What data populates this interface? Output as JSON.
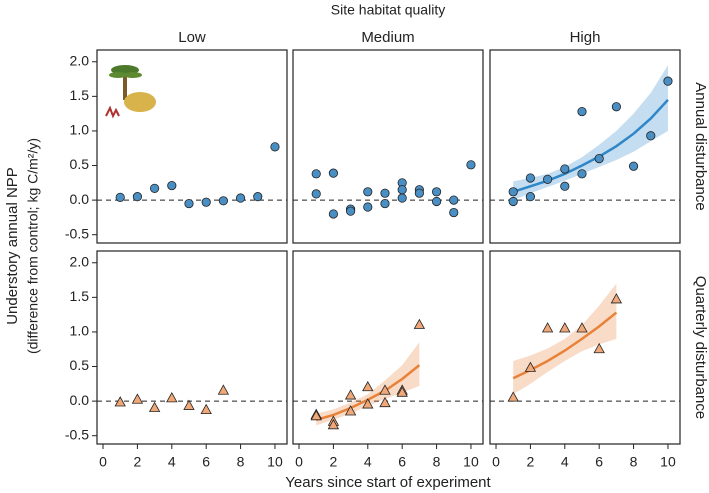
{
  "figure": {
    "title": "Site habitat quality",
    "columns": [
      "Low",
      "Medium",
      "High"
    ],
    "rows": [
      "Annual disturbance",
      "Quarterly disturbance"
    ],
    "ylabel": [
      "Understory annual NPP",
      "(difference from control; kg C/m²/y)"
    ],
    "xlabel": "Years since start of experiment",
    "xlim": [
      -0.35,
      10.7
    ],
    "ylim": [
      -0.62,
      2.17
    ],
    "xticks": [
      0,
      2,
      4,
      6,
      8,
      10
    ],
    "yticks": [
      -0.5,
      {
        "value": 0,
        "label": "0.0"
      },
      0.5,
      {
        "value": 1,
        "label": "1.0"
      },
      1.5,
      {
        "value": 2,
        "label": "2.0"
      }
    ],
    "reference_line": 0
  },
  "chart_data": [
    {
      "type": "scatter",
      "color": "#4a8fc4",
      "marker": "circle",
      "x": [
        1,
        2,
        3,
        4,
        5,
        6,
        7,
        8,
        9,
        10
      ],
      "values": [
        0.04,
        0.05,
        0.17,
        0.21,
        -0.05,
        -0.03,
        -0.01,
        0.03,
        0.05,
        0.77
      ]
    },
    {
      "type": "scatter",
      "color": "#4a8fc4",
      "marker": "circle",
      "x": [
        1,
        1,
        2,
        2,
        3,
        3,
        4,
        4,
        5,
        5,
        6,
        6,
        6,
        7,
        7,
        8,
        8,
        9,
        9,
        10
      ],
      "values": [
        0.38,
        0.09,
        0.39,
        -0.2,
        -0.13,
        -0.16,
        0.12,
        -0.1,
        0.1,
        -0.05,
        0.25,
        0.03,
        0.15,
        0.15,
        0.1,
        0.12,
        -0.02,
        -0.18,
        0.0,
        0.51
      ]
    },
    {
      "type": "scatter",
      "color": "#4a8fc4",
      "marker": "circle",
      "x": [
        1,
        1,
        2,
        2,
        3,
        4,
        4,
        5,
        5,
        6,
        7,
        8,
        9,
        10
      ],
      "values": [
        0.12,
        -0.02,
        0.32,
        0.05,
        0.3,
        0.45,
        0.2,
        1.28,
        0.38,
        0.6,
        1.35,
        0.49,
        0.93,
        1.72
      ],
      "fit": {
        "color": "#2f86c8",
        "x": [
          1,
          2,
          3,
          4,
          5,
          6,
          7,
          8,
          9,
          10
        ],
        "y": [
          0.12,
          0.2,
          0.28,
          0.38,
          0.5,
          0.63,
          0.78,
          0.96,
          1.18,
          1.45
        ],
        "lower": [
          0.0,
          0.1,
          0.19,
          0.28,
          0.38,
          0.48,
          0.58,
          0.7,
          0.85,
          1.0
        ],
        "upper": [
          0.27,
          0.32,
          0.38,
          0.48,
          0.62,
          0.8,
          1.0,
          1.25,
          1.55,
          1.95
        ]
      }
    },
    {
      "type": "scatter",
      "color": "#f0a878",
      "marker": "triangle",
      "x": [
        1,
        2,
        3,
        4,
        5,
        6,
        7
      ],
      "values": [
        -0.02,
        0.02,
        -0.1,
        0.04,
        -0.07,
        -0.13,
        0.15
      ]
    },
    {
      "type": "scatter",
      "color": "#f0a878",
      "marker": "triangle",
      "x": [
        1,
        1,
        2,
        2,
        3,
        3,
        4,
        4,
        5,
        5,
        6,
        6,
        7
      ],
      "values": [
        -0.2,
        -0.22,
        -0.3,
        -0.35,
        0.08,
        -0.15,
        0.2,
        -0.05,
        0.15,
        -0.03,
        0.15,
        0.12,
        1.1
      ],
      "fit": {
        "color": "#e8823a",
        "x": [
          1,
          2,
          3,
          4,
          5,
          6,
          7
        ],
        "y": [
          -0.27,
          -0.2,
          -0.1,
          0.02,
          0.15,
          0.32,
          0.52
        ],
        "lower": [
          -0.35,
          -0.27,
          -0.18,
          -0.07,
          0.03,
          0.12,
          0.22
        ],
        "upper": [
          -0.18,
          -0.12,
          -0.02,
          0.1,
          0.3,
          0.52,
          0.85
        ]
      }
    },
    {
      "type": "scatter",
      "color": "#f0a878",
      "marker": "triangle",
      "x": [
        1,
        2,
        3,
        4,
        5,
        6,
        7
      ],
      "values": [
        0.05,
        0.48,
        1.05,
        1.05,
        1.05,
        0.75,
        1.47
      ],
      "fit": {
        "color": "#e8823a",
        "x": [
          1,
          2,
          3,
          4,
          5,
          6,
          7
        ],
        "y": [
          0.33,
          0.45,
          0.58,
          0.73,
          0.9,
          1.08,
          1.28
        ],
        "lower": [
          0.1,
          0.25,
          0.42,
          0.58,
          0.72,
          0.82,
          0.9
        ],
        "upper": [
          0.58,
          0.66,
          0.76,
          0.9,
          1.1,
          1.38,
          1.7
        ]
      }
    }
  ]
}
